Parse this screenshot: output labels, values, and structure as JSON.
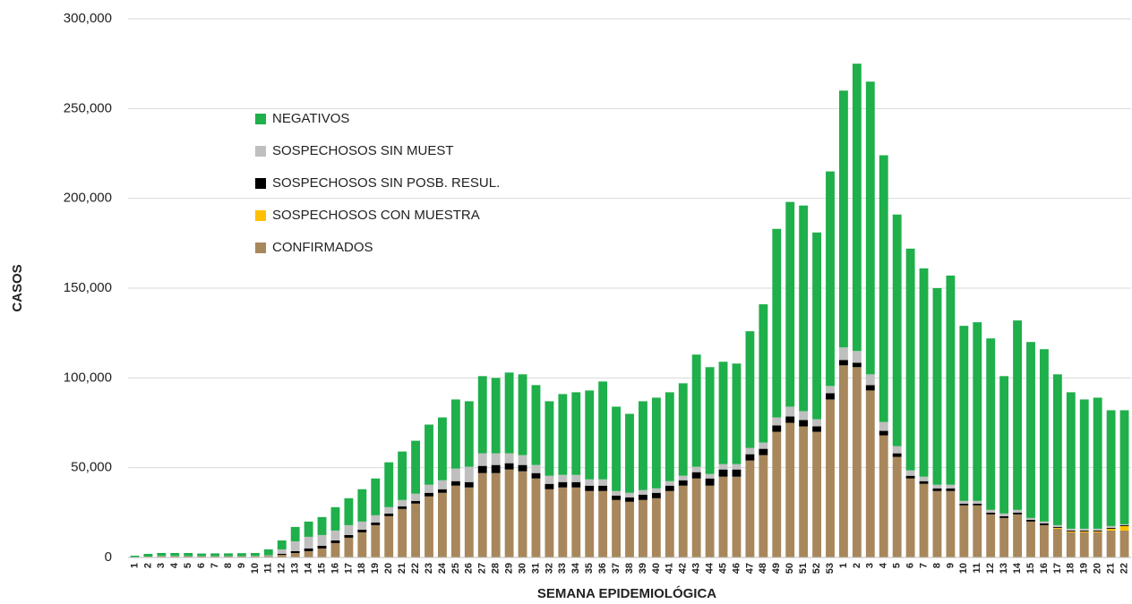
{
  "chart_data": {
    "type": "stacked_bar",
    "y_label": "CASOS",
    "x_label": "SEMANA EPIDEMIOLÓGICA",
    "categories": [
      "1",
      "2",
      "3",
      "4",
      "5",
      "6",
      "7",
      "8",
      "9",
      "10",
      "11",
      "12",
      "13",
      "14",
      "15",
      "16",
      "17",
      "18",
      "19",
      "20",
      "21",
      "22",
      "23",
      "24",
      "25",
      "26",
      "27",
      "28",
      "29",
      "30",
      "31",
      "32",
      "33",
      "34",
      "35",
      "36",
      "37",
      "38",
      "39",
      "40",
      "41",
      "42",
      "43",
      "44",
      "45",
      "46",
      "47",
      "48",
      "49",
      "50",
      "51",
      "52",
      "53",
      "1",
      "2",
      "3",
      "4",
      "5",
      "6",
      "7",
      "8",
      "9",
      "10",
      "11",
      "12",
      "13",
      "14",
      "15",
      "16",
      "17",
      "18",
      "19",
      "20",
      "21",
      "22"
    ],
    "series": [
      {
        "name": "CONFIRMADOS",
        "color": "#a8875c",
        "values": [
          200,
          400,
          600,
          600,
          500,
          500,
          500,
          500,
          500,
          600,
          800,
          1500,
          2500,
          3500,
          5000,
          8000,
          11000,
          14000,
          18000,
          23000,
          27000,
          30000,
          34000,
          36000,
          40000,
          39000,
          47000,
          47000,
          49000,
          48000,
          44000,
          38000,
          39000,
          39000,
          37000,
          37000,
          32000,
          31000,
          32000,
          33000,
          37000,
          40000,
          44000,
          40000,
          45000,
          45000,
          54000,
          57000,
          70000,
          75000,
          73000,
          70000,
          88000,
          107000,
          106000,
          93000,
          68000,
          56000,
          44000,
          41000,
          37000,
          37000,
          29000,
          29000,
          24000,
          22000,
          24000,
          20000,
          18000,
          16000,
          14000,
          14000,
          14000,
          15000,
          15000
        ]
      },
      {
        "name": "SOSPECHOSOS CON MUESTRA",
        "color": "#ffc000",
        "values": [
          0,
          0,
          0,
          0,
          0,
          0,
          0,
          0,
          0,
          0,
          0,
          0,
          0,
          0,
          0,
          0,
          0,
          0,
          0,
          0,
          0,
          0,
          0,
          0,
          0,
          0,
          0,
          0,
          0,
          0,
          0,
          0,
          0,
          0,
          0,
          0,
          0,
          0,
          0,
          0,
          0,
          0,
          0,
          0,
          0,
          0,
          0,
          0,
          0,
          0,
          0,
          0,
          0,
          0,
          0,
          0,
          0,
          0,
          0,
          0,
          0,
          0,
          0,
          0,
          0,
          0,
          0,
          0,
          0,
          500,
          500,
          500,
          500,
          1000,
          2500
        ]
      },
      {
        "name": "SOSPECHOSOS SIN POSB. RESUL.",
        "color": "#000000",
        "values": [
          0,
          0,
          0,
          0,
          0,
          0,
          0,
          0,
          0,
          0,
          0,
          500,
          1000,
          1500,
          1500,
          1500,
          1500,
          1500,
          1500,
          1500,
          1500,
          1500,
          2000,
          2000,
          2500,
          3000,
          4000,
          4500,
          3500,
          3500,
          3000,
          3000,
          3000,
          3000,
          3000,
          3000,
          2500,
          2500,
          3000,
          3000,
          3000,
          3000,
          3500,
          4000,
          4000,
          4000,
          3500,
          3500,
          3500,
          3500,
          3500,
          3000,
          3500,
          3000,
          2500,
          3000,
          2500,
          2000,
          1500,
          1500,
          1500,
          1500,
          1000,
          1000,
          1000,
          1000,
          1000,
          1000,
          1000,
          500,
          500,
          500,
          500,
          500,
          500
        ]
      },
      {
        "name": "SOSPECHOSOS SIN MUEST",
        "color": "#bfbfbf",
        "values": [
          0,
          100,
          200,
          200,
          200,
          200,
          200,
          200,
          200,
          200,
          400,
          2500,
          5500,
          6500,
          6000,
          5500,
          5500,
          4500,
          4000,
          3500,
          3500,
          4000,
          4500,
          5000,
          7000,
          8500,
          7000,
          6500,
          5500,
          5500,
          4500,
          4500,
          4000,
          4000,
          3500,
          3500,
          2500,
          2500,
          2500,
          2500,
          2500,
          2500,
          3000,
          2500,
          3000,
          3000,
          3500,
          3500,
          4500,
          5500,
          5000,
          4000,
          4000,
          7000,
          6500,
          6000,
          5000,
          4000,
          3000,
          2500,
          2000,
          2000,
          1500,
          1500,
          1500,
          1500,
          1500,
          1000,
          1000,
          1000,
          1000,
          1000,
          1000,
          1000,
          500
        ]
      },
      {
        "name": "NEGATIVOS",
        "color": "#1faf4b",
        "values": [
          800,
          1500,
          1700,
          1700,
          1800,
          1500,
          1600,
          1600,
          1700,
          1700,
          3300,
          5000,
          8000,
          8500,
          10000,
          13000,
          15000,
          18000,
          20500,
          25000,
          27000,
          29500,
          33500,
          35000,
          38500,
          36500,
          43000,
          42000,
          45000,
          45000,
          44500,
          41500,
          45000,
          46000,
          49500,
          54500,
          47000,
          44000,
          49500,
          50500,
          49500,
          51500,
          62500,
          59500,
          57000,
          56000,
          65000,
          77000,
          105000,
          114000,
          114500,
          104000,
          119500,
          143000,
          160000,
          163000,
          148500,
          129000,
          123500,
          116000,
          109500,
          116500,
          97500,
          99500,
          95500,
          76500,
          105500,
          98000,
          96000,
          84000,
          76000,
          72000,
          73000,
          64500,
          63500
        ]
      }
    ],
    "ylim": [
      0,
      300000
    ],
    "yticks": [
      0,
      {
        "value": 50000,
        "label": "50,000"
      },
      {
        "value": 100000,
        "label": "100,000"
      },
      {
        "value": 150000,
        "label": "150,000"
      },
      {
        "value": 200000,
        "label": "200,000"
      },
      {
        "value": 250000,
        "label": "250,000"
      },
      {
        "value": 300000,
        "label": "300,000"
      }
    ],
    "grid": true
  }
}
